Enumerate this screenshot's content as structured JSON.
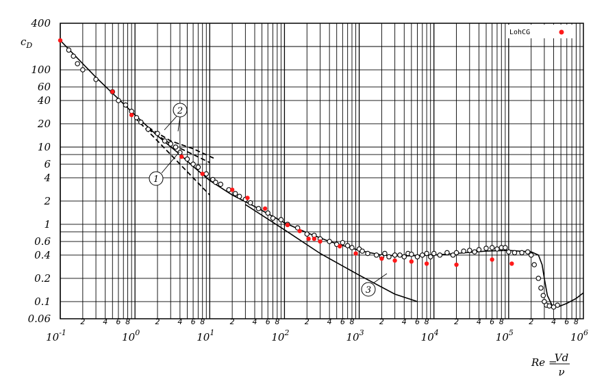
{
  "chart_data": {
    "type": "scatter",
    "ylabel": "c",
    "ylabel_sub": "D",
    "xlabel": "Re =",
    "xlabel_num": "Vd",
    "xlabel_den": "ν",
    "x_scale": "log",
    "y_scale": "log",
    "xlim": [
      0.1,
      1000000
    ],
    "ylim": [
      0.06,
      400
    ],
    "grid": true,
    "legend_position": "top-right",
    "x_ticks_major": [
      {
        "label": "10",
        "exp": "-1",
        "value": 0.1
      },
      {
        "label": "10",
        "exp": "0",
        "value": 1
      },
      {
        "label": "10",
        "exp": "1",
        "value": 10
      },
      {
        "label": "10",
        "exp": "2",
        "value": 100
      },
      {
        "label": "10",
        "exp": "3",
        "value": 1000
      },
      {
        "label": "10",
        "exp": "4",
        "value": 10000
      },
      {
        "label": "10",
        "exp": "5",
        "value": 100000
      },
      {
        "label": "10",
        "exp": "6",
        "value": 1000000
      }
    ],
    "x_ticks_minor_labels": [
      "2",
      "4",
      "6",
      "8"
    ],
    "y_ticks": [
      {
        "label": "400",
        "value": 400
      },
      {
        "label": "100",
        "value": 100
      },
      {
        "label": "60",
        "value": 60
      },
      {
        "label": "40",
        "value": 40
      },
      {
        "label": "20",
        "value": 20
      },
      {
        "label": "10",
        "value": 10
      },
      {
        "label": "6",
        "value": 6
      },
      {
        "label": "4",
        "value": 4
      },
      {
        "label": "2",
        "value": 2
      },
      {
        "label": "1",
        "value": 1
      },
      {
        "label": "0.6",
        "value": 0.6
      },
      {
        "label": "0.4",
        "value": 0.4
      },
      {
        "label": "0.2",
        "value": 0.2
      },
      {
        "label": "0.1",
        "value": 0.1
      },
      {
        "label": "0.06",
        "value": 0.06
      }
    ],
    "series": [
      {
        "name": "LohCG",
        "color": "#ff1a1a",
        "marker": "filled-circle",
        "x": [
          0.1,
          0.5,
          0.9,
          4.2,
          8,
          20,
          32,
          55,
          110,
          160,
          210,
          250,
          300,
          550,
          900,
          2000,
          3000,
          5000,
          8000,
          20000,
          60000,
          110000
        ],
        "y": [
          240,
          52,
          26,
          7.5,
          4.5,
          2.8,
          2.2,
          1.6,
          0.98,
          0.82,
          0.65,
          0.65,
          0.6,
          0.52,
          0.42,
          0.36,
          0.34,
          0.33,
          0.31,
          0.3,
          0.35,
          0.31
        ]
      },
      {
        "marker": "open-circle",
        "color": "#000000",
        "x": [
          0.13,
          0.15,
          0.17,
          0.2,
          0.3,
          0.5,
          0.6,
          0.75,
          0.9,
          1.05,
          1.2,
          1.5,
          2,
          2.5,
          3,
          3.5,
          4,
          5,
          6,
          7,
          9,
          11,
          12,
          14,
          18,
          22,
          25,
          30,
          35,
          45,
          60,
          70,
          90,
          110,
          150,
          200,
          250,
          300,
          400,
          500,
          600,
          700,
          800,
          1000,
          1100,
          1300,
          1700,
          2000,
          2200,
          2500,
          3000,
          3500,
          4000,
          4500,
          5000,
          6000,
          7000,
          8000,
          9000,
          10000,
          12000,
          15000,
          18000,
          20000,
          25000,
          30000,
          35000,
          40000,
          50000,
          60000,
          70000,
          80000,
          90000,
          100000,
          120000,
          150000,
          180000,
          200000,
          220000,
          250000,
          270000,
          290000,
          300000,
          320000,
          350000,
          400000,
          450000
        ],
        "y": [
          180,
          150,
          120,
          100,
          75,
          52,
          40,
          35,
          29,
          24,
          21,
          17,
          15,
          12,
          11,
          10,
          8.5,
          7,
          6,
          5.5,
          4.5,
          3.8,
          3.5,
          3.3,
          2.8,
          2.5,
          2.3,
          2.1,
          1.9,
          1.6,
          1.4,
          1.2,
          1.15,
          1.0,
          0.9,
          0.75,
          0.72,
          0.65,
          0.6,
          0.55,
          0.58,
          0.53,
          0.5,
          0.48,
          0.45,
          0.42,
          0.4,
          0.38,
          0.42,
          0.38,
          0.4,
          0.4,
          0.38,
          0.42,
          0.41,
          0.38,
          0.4,
          0.42,
          0.38,
          0.42,
          0.4,
          0.43,
          0.4,
          0.43,
          0.45,
          0.46,
          0.44,
          0.47,
          0.49,
          0.5,
          0.48,
          0.5,
          0.5,
          0.44,
          0.43,
          0.43,
          0.44,
          0.4,
          0.3,
          0.2,
          0.15,
          0.12,
          0.1,
          0.09,
          0.088,
          0.085,
          0.09
        ]
      }
    ],
    "curves": [
      {
        "id": "main",
        "style": "solid",
        "x": [
          0.1,
          0.3,
          0.6,
          1,
          2,
          4,
          6,
          10,
          20,
          40,
          100,
          200,
          400,
          1000,
          2000,
          4000,
          10000,
          20000,
          50000,
          100000,
          200000,
          250000,
          280000,
          300000,
          330000,
          380000,
          450000,
          600000,
          800000,
          1000000
        ],
        "y": [
          240,
          80,
          42,
          26,
          14,
          8,
          5.6,
          3.7,
          2.4,
          1.7,
          1.05,
          0.78,
          0.6,
          0.46,
          0.4,
          0.39,
          0.4,
          0.42,
          0.45,
          0.46,
          0.44,
          0.4,
          0.3,
          0.2,
          0.12,
          0.09,
          0.085,
          0.095,
          0.11,
          0.13
        ]
      },
      {
        "id": "1",
        "label": "1",
        "style": "dashed",
        "x": [
          1,
          2,
          4,
          10
        ],
        "y": [
          24,
          12,
          6,
          2.4
        ]
      },
      {
        "id": "2a",
        "label": "2",
        "style": "dashed",
        "x": [
          1.5,
          3,
          6,
          12
        ],
        "y": [
          18,
          12,
          9.5,
          7
        ]
      },
      {
        "id": "2b",
        "label": "2",
        "style": "dashed",
        "x": [
          1.5,
          3,
          6,
          10
        ],
        "y": [
          17,
          11,
          8,
          6.3
        ]
      },
      {
        "id": "3",
        "label": "3",
        "style": "solid",
        "x": [
          30,
          100,
          300,
          1000,
          3000,
          6000
        ],
        "y": [
          1.8,
          0.85,
          0.42,
          0.22,
          0.125,
          0.1
        ]
      }
    ],
    "callouts": [
      "1",
      "2",
      "3"
    ]
  }
}
